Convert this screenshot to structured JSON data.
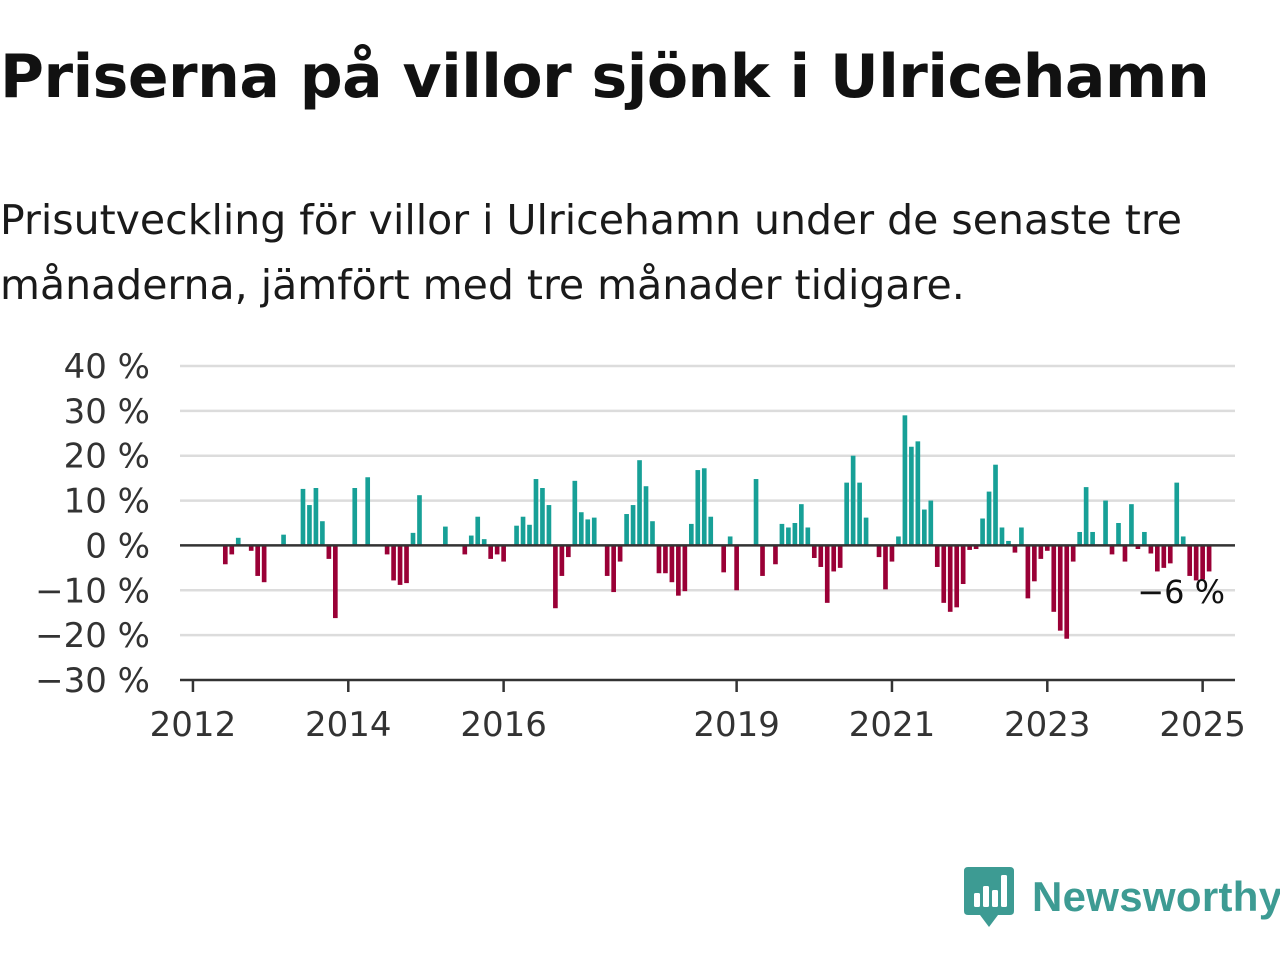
{
  "title": "Priserna på villor sjönk i Ulricehamn",
  "subtitle": "Prisutveckling för villor i Ulricehamn under de senaste tre månaderna, jämfört med tre månader tidigare.",
  "brand": {
    "name": "Newsworthy",
    "icon": "newsworthy-logo-icon"
  },
  "colors": {
    "positive": "#17a097",
    "negative": "#9a0036",
    "grid": "#dcdcdc",
    "axis": "#333333",
    "brand": "#3d9b93"
  },
  "chart_data": {
    "type": "bar",
    "y_tick_labels": [
      "40 %",
      "30 %",
      "20 %",
      "10 %",
      "0 %",
      "−10 %",
      "−20 %",
      "−30 %"
    ],
    "y_ticks": [
      40,
      30,
      20,
      10,
      0,
      -10,
      -20,
      -30
    ],
    "ylim": [
      -30,
      40
    ],
    "grid": true,
    "x_tick_labels": [
      "2012",
      "2014",
      "2016",
      "2019",
      "2021",
      "2023",
      "2025"
    ],
    "x_tick_years": [
      2012,
      2014,
      2016,
      2019,
      2021,
      2023,
      2025
    ],
    "xlim": [
      "2011-11",
      "2025-06"
    ],
    "x_start": "2012-06",
    "frequency": "monthly",
    "values": [
      -4.2,
      -2,
      1.7,
      0,
      -1.2,
      -6.8,
      -8.2,
      0,
      0,
      2.4,
      0,
      0,
      12.6,
      9,
      12.8,
      5.4,
      -3,
      -16.2,
      0,
      0,
      12.8,
      0,
      15.2,
      0,
      0,
      -2,
      -7.8,
      -8.8,
      -8.4,
      2.8,
      11.2,
      0,
      0,
      0,
      4.2,
      0,
      0,
      -2,
      2.2,
      6.4,
      1.4,
      -3,
      -2,
      -3.6,
      0,
      4.4,
      6.4,
      4.6,
      14.8,
      12.8,
      9,
      -14,
      -6.8,
      -2.6,
      14.4,
      7.4,
      5.8,
      6.2,
      0,
      -6.8,
      -10.4,
      -3.6,
      7,
      9,
      19,
      13.2,
      5.4,
      -6.2,
      -6.2,
      -8.2,
      -11.2,
      -10.2,
      4.8,
      16.8,
      17.2,
      6.4,
      0,
      -6,
      2,
      -10,
      0,
      0,
      14.8,
      -6.8,
      0,
      -4.2,
      4.8,
      4,
      5,
      9.2,
      4,
      -2.8,
      -4.8,
      -12.8,
      -5.8,
      -5,
      14,
      20,
      14,
      6.2,
      0,
      -2.6,
      -9.8,
      -3.6,
      2,
      29,
      22,
      23.2,
      8,
      10,
      -4.8,
      -12.8,
      -14.8,
      -13.8,
      -8.6,
      -1,
      -0.8,
      6,
      12,
      18,
      4,
      1,
      -1.6,
      4,
      -11.8,
      -8,
      -3,
      -1.2,
      -14.8,
      -19,
      -20.8,
      -3.6,
      3,
      13,
      3,
      0,
      10,
      -2,
      5,
      -3.6,
      9.2,
      -0.8,
      3,
      -1.8,
      -5.8,
      -5,
      -4,
      14,
      2,
      -6.8,
      -7.8,
      -7.6,
      -5.8
    ],
    "last_label": "−6 %"
  }
}
